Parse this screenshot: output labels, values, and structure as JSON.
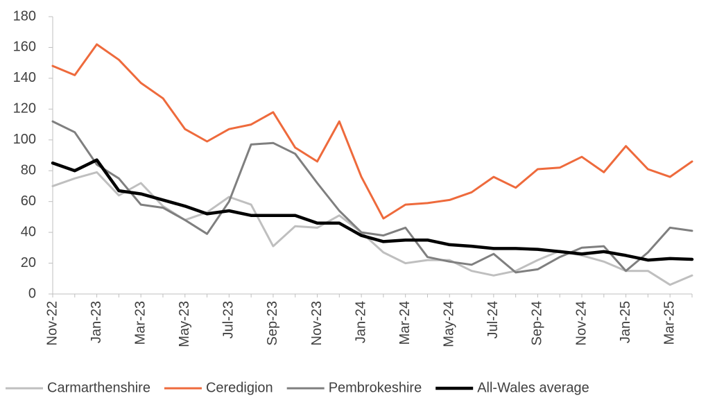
{
  "chart_data": {
    "type": "line",
    "categories": [
      "Nov-22",
      null,
      "Jan-23",
      null,
      "Mar-23",
      null,
      "May-23",
      null,
      "Jul-23",
      null,
      "Sep-23",
      null,
      "Nov-23",
      null,
      "Jan-24",
      null,
      "Mar-24",
      null,
      "May-24",
      null,
      "Jul-24",
      null,
      "Sep-24",
      null,
      "Nov-24",
      null,
      "Jan-25",
      null,
      "Mar-25",
      null
    ],
    "series": [
      {
        "name": "Carmarthenshire",
        "color": "#bfbfbf",
        "line_width": 3,
        "values": [
          70,
          75,
          79,
          64,
          72,
          57,
          48,
          53,
          63,
          58,
          31,
          44,
          43,
          51,
          40,
          27,
          20,
          22,
          22,
          15,
          12,
          15,
          22,
          28,
          25,
          21,
          15,
          15,
          6,
          12
        ]
      },
      {
        "name": "Ceredigion",
        "color": "#ee6a3c",
        "line_width": 3,
        "values": [
          148,
          142,
          162,
          152,
          137,
          127,
          107,
          99,
          107,
          110,
          118,
          95,
          86,
          112,
          76,
          49,
          58,
          59,
          61,
          66,
          76,
          69,
          81,
          82,
          89,
          79,
          96,
          81,
          76,
          86
        ]
      },
      {
        "name": "Pembrokeshire",
        "color": "#7f7f7f",
        "line_width": 3,
        "values": [
          112,
          105,
          84,
          75,
          58,
          56,
          48,
          39,
          60,
          97,
          98,
          91,
          72,
          54,
          40,
          38,
          43,
          24,
          21,
          19,
          26,
          14,
          16,
          24,
          30,
          31,
          15,
          27,
          43,
          41
        ]
      },
      {
        "name": "All-Wales average",
        "color": "#000000",
        "line_width": 4.5,
        "values": [
          85,
          80,
          87,
          67,
          65,
          61,
          57,
          52,
          54,
          51,
          51,
          51,
          46,
          46,
          38,
          34,
          35,
          35,
          32,
          31,
          29.5,
          29.5,
          29,
          27.5,
          26,
          27.5,
          25,
          22,
          23,
          22.5
        ]
      }
    ],
    "ylim": [
      0,
      180
    ],
    "yticks": [
      0,
      20,
      40,
      60,
      80,
      100,
      120,
      140,
      160,
      180
    ],
    "legend": "bottom"
  }
}
